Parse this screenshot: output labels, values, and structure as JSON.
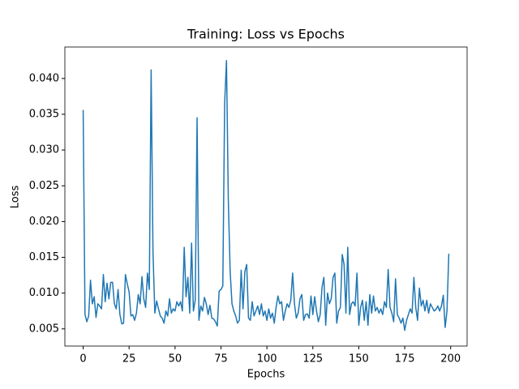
{
  "chart_data": {
    "type": "line",
    "title": "Training: Loss vs Epochs",
    "x_label": "Epochs",
    "y_label": "Loss",
    "x": [
      0,
      1,
      2,
      3,
      4,
      5,
      6,
      7,
      8,
      9,
      10,
      11,
      12,
      13,
      14,
      15,
      16,
      17,
      18,
      19,
      20,
      21,
      22,
      23,
      24,
      25,
      26,
      27,
      28,
      29,
      30,
      31,
      32,
      33,
      34,
      35,
      36,
      37,
      38,
      39,
      40,
      41,
      42,
      43,
      44,
      45,
      46,
      47,
      48,
      49,
      50,
      51,
      52,
      53,
      54,
      55,
      56,
      57,
      58,
      59,
      60,
      61,
      62,
      63,
      64,
      65,
      66,
      67,
      68,
      69,
      70,
      71,
      72,
      73,
      74,
      75,
      76,
      77,
      78,
      79,
      80,
      81,
      82,
      83,
      84,
      85,
      86,
      87,
      88,
      89,
      90,
      91,
      92,
      93,
      94,
      95,
      96,
      97,
      98,
      99,
      100,
      101,
      102,
      103,
      104,
      105,
      106,
      107,
      108,
      109,
      110,
      111,
      112,
      113,
      114,
      115,
      116,
      117,
      118,
      119,
      120,
      121,
      122,
      123,
      124,
      125,
      126,
      127,
      128,
      129,
      130,
      131,
      132,
      133,
      134,
      135,
      136,
      137,
      138,
      139,
      140,
      141,
      142,
      143,
      144,
      145,
      146,
      147,
      148,
      149,
      150,
      151,
      152,
      153,
      154,
      155,
      156,
      157,
      158,
      159,
      160,
      161,
      162,
      163,
      164,
      165,
      166,
      167,
      168,
      169,
      170,
      171,
      172,
      173,
      174,
      175,
      176,
      177,
      178,
      179,
      180,
      181,
      182,
      183,
      184,
      185,
      186,
      187,
      188,
      189,
      190,
      191,
      192,
      193,
      194,
      195,
      196,
      197,
      198,
      199
    ],
    "series": [
      {
        "name": "Loss",
        "color": "#1f77b4",
        "values": [
          0.0356,
          0.007,
          0.006,
          0.0068,
          0.0118,
          0.0085,
          0.0095,
          0.0066,
          0.0085,
          0.0082,
          0.0078,
          0.0126,
          0.0088,
          0.0114,
          0.0092,
          0.0115,
          0.0115,
          0.0085,
          0.0078,
          0.0105,
          0.007,
          0.0057,
          0.0058,
          0.0126,
          0.0113,
          0.0102,
          0.0068,
          0.007,
          0.0062,
          0.0072,
          0.0098,
          0.0085,
          0.0123,
          0.0092,
          0.008,
          0.0128,
          0.0105,
          0.0412,
          0.0158,
          0.0072,
          0.0089,
          0.0078,
          0.0068,
          0.0065,
          0.0058,
          0.0075,
          0.0068,
          0.0092,
          0.0072,
          0.0078,
          0.0075,
          0.0088,
          0.0082,
          0.0088,
          0.0075,
          0.0164,
          0.0095,
          0.0122,
          0.0072,
          0.017,
          0.0075,
          0.009,
          0.0345,
          0.0062,
          0.0082,
          0.0075,
          0.0094,
          0.0085,
          0.007,
          0.0083,
          0.0065,
          0.0064,
          0.006,
          0.0054,
          0.0103,
          0.0105,
          0.011,
          0.0365,
          0.0425,
          0.023,
          0.013,
          0.0085,
          0.0075,
          0.0068,
          0.0058,
          0.0062,
          0.0132,
          0.0078,
          0.013,
          0.014,
          0.0065,
          0.0062,
          0.0088,
          0.0068,
          0.0075,
          0.0082,
          0.007,
          0.0085,
          0.0068,
          0.0075,
          0.0062,
          0.0078,
          0.0065,
          0.0072,
          0.0058,
          0.008,
          0.0096,
          0.0085,
          0.0088,
          0.0062,
          0.0075,
          0.0085,
          0.008,
          0.009,
          0.0128,
          0.0085,
          0.0065,
          0.0072,
          0.0092,
          0.0098,
          0.0062,
          0.007,
          0.0071,
          0.0065,
          0.0096,
          0.007,
          0.0095,
          0.0075,
          0.006,
          0.007,
          0.0108,
          0.0122,
          0.0055,
          0.01,
          0.0085,
          0.0092,
          0.0122,
          0.0128,
          0.0058,
          0.0075,
          0.008,
          0.0154,
          0.014,
          0.0072,
          0.0164,
          0.007,
          0.0085,
          0.0088,
          0.0082,
          0.0128,
          0.0055,
          0.008,
          0.009,
          0.0062,
          0.0088,
          0.0055,
          0.0098,
          0.0072,
          0.0096,
          0.0075,
          0.008,
          0.0072,
          0.0078,
          0.007,
          0.0088,
          0.008,
          0.0133,
          0.008,
          0.0072,
          0.006,
          0.012,
          0.007,
          0.0065,
          0.0058,
          0.0065,
          0.0048,
          0.0062,
          0.007,
          0.0078,
          0.0072,
          0.0122,
          0.008,
          0.0062,
          0.0107,
          0.0082,
          0.009,
          0.0075,
          0.009,
          0.0072,
          0.0085,
          0.008,
          0.0075,
          0.0077,
          0.0082,
          0.0075,
          0.0082,
          0.0097,
          0.0052,
          0.0075,
          0.0155
        ]
      }
    ],
    "xlim": [
      -9.95,
      208.95
    ],
    "xticks": [
      0,
      25,
      50,
      75,
      100,
      125,
      150,
      175,
      200
    ],
    "ylim": [
      0.0026,
      0.0444
    ],
    "yticks": [
      0.005,
      {
        "value": 0.01,
        "label": "0.010"
      },
      0.015,
      {
        "value": 0.02,
        "label": "0.020"
      },
      0.025,
      {
        "value": 0.03,
        "label": "0.030"
      },
      0.035,
      {
        "value": 0.04,
        "label": "0.040"
      }
    ],
    "grid": false
  }
}
